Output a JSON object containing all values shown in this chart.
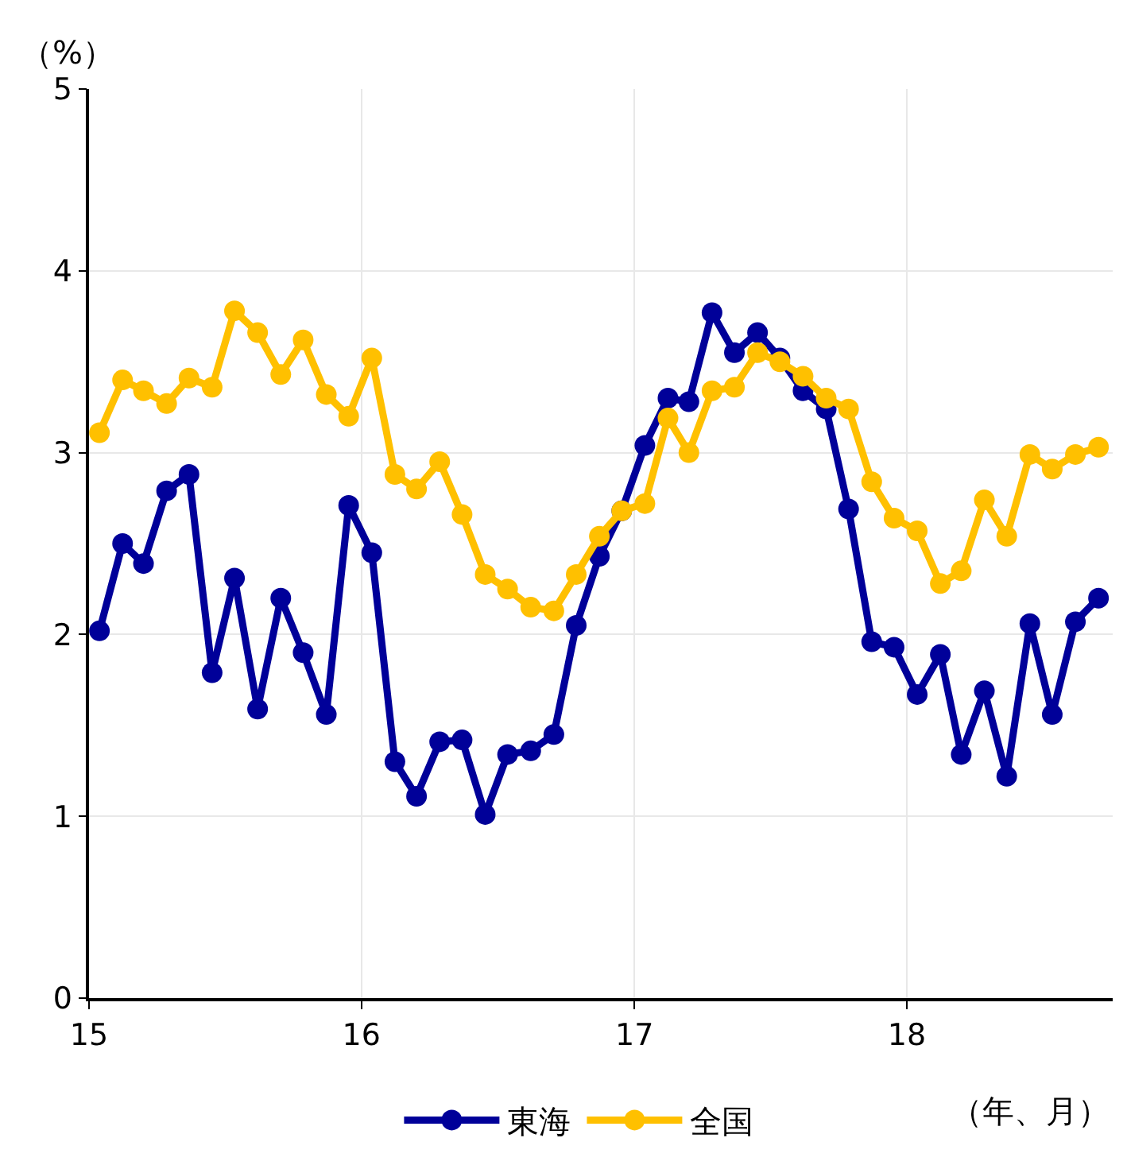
{
  "chart_data": {
    "type": "line",
    "ylabel": "（%）",
    "xlabel": "（年、月）",
    "x": [
      "2015-01-15",
      "2015-02-15",
      "2015-03-15",
      "2015-04-15",
      "2015-05-15",
      "2015-06-15",
      "2015-07-15",
      "2015-08-15",
      "2015-09-15",
      "2015-10-15",
      "2015-11-15",
      "2015-12-15",
      "2016-01-15",
      "2016-02-15",
      "2016-03-15",
      "2016-04-15",
      "2016-05-15",
      "2016-06-15",
      "2016-07-15",
      "2016-08-15",
      "2016-09-15",
      "2016-10-15",
      "2016-11-15",
      "2016-12-15",
      "2017-01-15",
      "2017-02-15",
      "2017-03-15",
      "2017-04-15",
      "2017-05-15",
      "2017-06-15",
      "2017-07-15",
      "2017-08-15",
      "2017-09-15",
      "2017-10-15",
      "2017-11-15",
      "2017-12-15",
      "2018-01-15",
      "2018-02-15",
      "2018-03-15",
      "2018-04-15",
      "2018-05-15",
      "2018-06-15",
      "2018-07-15",
      "2018-08-15",
      "2018-09-15"
    ],
    "series": [
      {
        "name": "東海",
        "color": "#000099",
        "values": [
          2.02,
          2.5,
          2.39,
          2.79,
          2.88,
          1.79,
          2.31,
          1.59,
          2.2,
          1.9,
          1.56,
          2.71,
          2.45,
          1.3,
          1.11,
          1.41,
          1.42,
          1.01,
          1.34,
          1.36,
          1.45,
          2.05,
          2.43,
          2.68,
          3.04,
          3.3,
          3.28,
          3.77,
          3.55,
          3.66,
          3.52,
          3.34,
          3.24,
          2.69,
          1.96,
          1.93,
          1.67,
          1.89,
          1.34,
          1.69,
          1.22,
          2.06,
          1.56,
          2.07,
          2.2
        ]
      },
      {
        "name": "全国",
        "color": "#ffc000",
        "values": [
          3.11,
          3.4,
          3.34,
          3.27,
          3.41,
          3.36,
          3.78,
          3.66,
          3.43,
          3.62,
          3.32,
          3.2,
          3.52,
          2.88,
          2.8,
          2.95,
          2.66,
          2.33,
          2.25,
          2.15,
          2.13,
          2.33,
          2.54,
          2.68,
          2.72,
          3.19,
          3.0,
          3.34,
          3.36,
          3.55,
          3.5,
          3.42,
          3.3,
          3.24,
          2.84,
          2.64,
          2.57,
          2.28,
          2.35,
          2.74,
          2.54,
          2.99,
          2.91,
          2.99,
          3.03
        ]
      }
    ],
    "xlim": [
      "2015-01-01",
      "2018-10-04"
    ],
    "xticks": [
      {
        "value": "2015-01-01",
        "label": "15"
      },
      {
        "value": "2016-01-01",
        "label": "16"
      },
      {
        "value": "2017-01-01",
        "label": "17"
      },
      {
        "value": "2018-01-01",
        "label": "18"
      }
    ],
    "ylim": [
      0,
      5
    ],
    "yticks": [
      0,
      1,
      2,
      3,
      4,
      5
    ],
    "grid": true,
    "legend": "bottom",
    "marker": "circle",
    "line_style": "solid"
  }
}
